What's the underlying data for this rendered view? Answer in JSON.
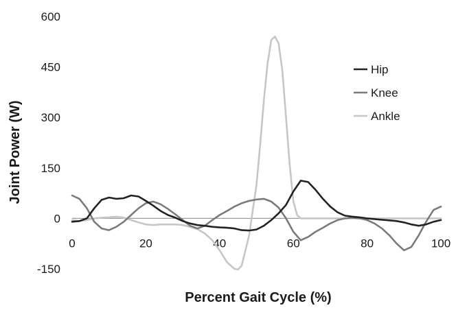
{
  "chart_data": {
    "type": "line",
    "xlabel": "Percent Gait Cycle (%)",
    "ylabel": "Joint Power (W)",
    "xlim": [
      0,
      100
    ],
    "ylim": [
      -150,
      600
    ],
    "xticks": [
      0,
      20,
      40,
      60,
      80,
      100
    ],
    "yticks": [
      -150,
      0,
      150,
      300,
      450,
      600
    ],
    "grid": false,
    "legend_position": "top-right",
    "series": [
      {
        "name": "Hip",
        "color": "#222222",
        "x": [
          0,
          2,
          4,
          6,
          8,
          10,
          12,
          14,
          16,
          18,
          20,
          22,
          24,
          26,
          28,
          30,
          32,
          34,
          36,
          38,
          40,
          42,
          44,
          46,
          48,
          50,
          52,
          54,
          56,
          58,
          60,
          62,
          64,
          66,
          68,
          70,
          72,
          74,
          76,
          78,
          80,
          82,
          84,
          86,
          88,
          90,
          92,
          94,
          96,
          98,
          100
        ],
        "y": [
          -10,
          -8,
          0,
          30,
          55,
          62,
          58,
          60,
          68,
          65,
          52,
          38,
          22,
          10,
          2,
          -8,
          -15,
          -20,
          -22,
          -25,
          -27,
          -28,
          -30,
          -35,
          -36,
          -33,
          -22,
          -5,
          15,
          40,
          80,
          112,
          108,
          85,
          58,
          35,
          18,
          8,
          5,
          3,
          0,
          -2,
          -4,
          -6,
          -8,
          -12,
          -18,
          -22,
          -18,
          -10,
          -5
        ]
      },
      {
        "name": "Knee",
        "color": "#7a7a7a",
        "x": [
          0,
          2,
          4,
          6,
          8,
          10,
          12,
          14,
          16,
          18,
          20,
          22,
          24,
          26,
          28,
          30,
          32,
          34,
          36,
          38,
          40,
          42,
          44,
          46,
          48,
          50,
          52,
          54,
          56,
          58,
          60,
          62,
          64,
          66,
          68,
          70,
          72,
          74,
          76,
          78,
          80,
          82,
          84,
          86,
          88,
          90,
          92,
          94,
          96,
          98,
          100
        ],
        "y": [
          68,
          58,
          30,
          -10,
          -30,
          -35,
          -25,
          -10,
          10,
          30,
          45,
          50,
          42,
          28,
          12,
          -5,
          -22,
          -30,
          -22,
          -5,
          10,
          22,
          35,
          45,
          52,
          56,
          58,
          50,
          32,
          0,
          -40,
          -65,
          -55,
          -40,
          -28,
          -15,
          -5,
          0,
          2,
          0,
          -5,
          -15,
          -30,
          -50,
          -75,
          -95,
          -85,
          -50,
          -10,
          25,
          35
        ]
      },
      {
        "name": "Ankle",
        "color": "#c6c6c6",
        "x": [
          0,
          2,
          4,
          6,
          8,
          10,
          12,
          14,
          16,
          18,
          20,
          22,
          24,
          26,
          28,
          30,
          32,
          34,
          36,
          38,
          40,
          42,
          44,
          45,
          46,
          48,
          50,
          51,
          52,
          53,
          54,
          55,
          56,
          57,
          58,
          59,
          60,
          61,
          62,
          64,
          66,
          68,
          70,
          72,
          76,
          80,
          84,
          88,
          92,
          96,
          100
        ],
        "y": [
          -5,
          -8,
          -5,
          0,
          2,
          3,
          5,
          2,
          -5,
          -12,
          -18,
          -20,
          -18,
          -18,
          -18,
          -20,
          -25,
          -32,
          -45,
          -65,
          -95,
          -130,
          -150,
          -152,
          -140,
          -50,
          100,
          220,
          350,
          460,
          530,
          540,
          520,
          440,
          300,
          160,
          50,
          10,
          0,
          0,
          0,
          0,
          0,
          0,
          0,
          0,
          0,
          0,
          0,
          0,
          0
        ]
      }
    ]
  }
}
